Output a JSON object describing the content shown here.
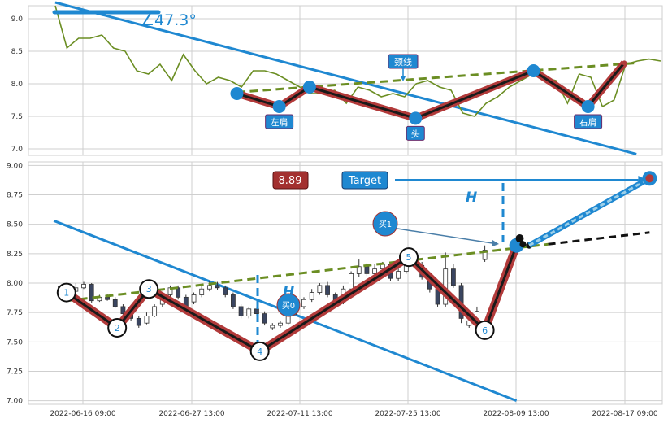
{
  "chart_data": [
    {
      "type": "line",
      "panel": "top",
      "ylim": [
        6.9,
        9.2
      ],
      "yticks": [
        "7.0",
        "7.5",
        "8.0",
        "8.5",
        "9.0"
      ],
      "angle_label": "∠47.3°",
      "price_line": [
        9.2,
        8.55,
        8.7,
        8.7,
        8.75,
        8.55,
        8.5,
        8.2,
        8.15,
        8.3,
        8.05,
        8.45,
        8.2,
        8.0,
        8.1,
        8.05,
        7.95,
        8.2,
        8.2,
        8.15,
        8.05,
        7.95,
        7.85,
        7.85,
        7.9,
        7.7,
        7.95,
        7.9,
        7.8,
        7.85,
        7.8,
        8.0,
        8.05,
        7.95,
        7.9,
        7.55,
        7.5,
        7.7,
        7.8,
        7.95,
        8.05,
        8.15,
        8.1,
        8.05,
        7.7,
        8.15,
        8.1,
        7.65,
        7.75,
        8.3,
        8.35,
        8.38,
        8.35
      ],
      "pattern_points": [
        {
          "x": 0.3,
          "y": 7.85,
          "label": ""
        },
        {
          "x": 0.37,
          "y": 7.65,
          "label": "左肩"
        },
        {
          "x": 0.42,
          "y": 7.95,
          "label": ""
        },
        {
          "x": 0.595,
          "y": 7.47,
          "label": "头"
        },
        {
          "x": 0.79,
          "y": 8.2,
          "label": ""
        },
        {
          "x": 0.88,
          "y": 7.65,
          "label": "右肩"
        },
        {
          "x": 0.94,
          "y": 8.32,
          "label": ""
        }
      ],
      "neckline": {
        "label": "颈线",
        "from": [
          0.3,
          7.87
        ],
        "to": [
          0.96,
          8.32
        ]
      },
      "trend_line": {
        "from": [
          0.0,
          9.25
        ],
        "to": [
          0.96,
          6.92
        ]
      }
    },
    {
      "type": "candlestick",
      "panel": "bottom",
      "ylim": [
        6.97,
        9.03
      ],
      "yticks": [
        "7.00",
        "7.25",
        "7.50",
        "7.75",
        "8.00",
        "8.25",
        "8.50",
        "8.75",
        "9.00"
      ],
      "xticks": [
        "2022-06-16 09:00",
        "2022-06-27 13:00",
        "2022-07-11 13:00",
        "2022-07-25 13:00",
        "2022-08-09 13:00",
        "2022-08-17 09:00"
      ],
      "annotations": {
        "price_box": "8.89",
        "target_label": "Target",
        "buy_label_1": "买1",
        "buy_label_0": "买0",
        "h_label": "H"
      },
      "pattern_points": [
        {
          "x": 0.06,
          "y": 7.92,
          "label": "1"
        },
        {
          "x": 0.14,
          "y": 7.62,
          "label": "2"
        },
        {
          "x": 0.19,
          "y": 7.95,
          "label": "3"
        },
        {
          "x": 0.365,
          "y": 7.42,
          "label": "4"
        },
        {
          "x": 0.6,
          "y": 8.22,
          "label": "5"
        },
        {
          "x": 0.72,
          "y": 7.6,
          "label": "6"
        },
        {
          "x": 0.77,
          "y": 8.32,
          "label": ""
        }
      ],
      "neckline": {
        "from": [
          0.06,
          7.85
        ],
        "to": [
          0.82,
          8.33
        ]
      },
      "trend_line": {
        "from": [
          0.04,
          8.53
        ],
        "to": [
          0.77,
          7.0
        ]
      },
      "target": {
        "x": 0.98,
        "y": 8.89
      },
      "projection": {
        "from": [
          0.82,
          8.33
        ],
        "to": [
          0.98,
          8.43
        ]
      },
      "candles": [
        [
          7.92,
          7.97,
          7.98,
          7.9
        ],
        [
          7.95,
          7.93,
          7.97,
          7.91
        ],
        [
          7.93,
          7.96,
          8.0,
          7.92
        ],
        [
          7.96,
          7.99,
          8.01,
          7.95
        ],
        [
          7.99,
          7.85,
          8.0,
          7.83
        ],
        [
          7.85,
          7.88,
          7.9,
          7.84
        ],
        [
          7.88,
          7.86,
          7.91,
          7.85
        ],
        [
          7.86,
          7.8,
          7.88,
          7.79
        ],
        [
          7.8,
          7.74,
          7.82,
          7.72
        ],
        [
          7.74,
          7.7,
          7.76,
          7.68
        ],
        [
          7.7,
          7.64,
          7.72,
          7.62
        ],
        [
          7.66,
          7.72,
          7.75,
          7.65
        ],
        [
          7.72,
          7.8,
          7.82,
          7.71
        ],
        [
          7.82,
          7.9,
          7.92,
          7.8
        ],
        [
          7.9,
          7.96,
          7.98,
          7.88
        ],
        [
          7.96,
          7.88,
          7.98,
          7.86
        ],
        [
          7.88,
          7.8,
          7.9,
          7.78
        ],
        [
          7.84,
          7.9,
          7.92,
          7.82
        ],
        [
          7.9,
          7.95,
          7.98,
          7.88
        ],
        [
          7.95,
          7.98,
          8.02,
          7.93
        ],
        [
          7.98,
          7.96,
          8.01,
          7.94
        ],
        [
          7.96,
          7.9,
          7.98,
          7.88
        ],
        [
          7.9,
          7.8,
          7.92,
          7.78
        ],
        [
          7.8,
          7.72,
          7.82,
          7.7
        ],
        [
          7.72,
          7.78,
          7.8,
          7.7
        ],
        [
          7.78,
          7.74,
          7.8,
          7.72
        ],
        [
          7.74,
          7.66,
          7.76,
          7.64
        ],
        [
          7.62,
          7.64,
          7.66,
          7.6
        ],
        [
          7.64,
          7.66,
          7.68,
          7.62
        ],
        [
          7.66,
          7.75,
          7.78,
          7.64
        ],
        [
          7.75,
          7.8,
          7.82,
          7.73
        ],
        [
          7.8,
          7.86,
          7.88,
          7.78
        ],
        [
          7.86,
          7.92,
          7.95,
          7.84
        ],
        [
          7.92,
          7.98,
          8.0,
          7.9
        ],
        [
          7.98,
          7.9,
          8.01,
          7.88
        ],
        [
          7.9,
          7.84,
          7.92,
          7.82
        ],
        [
          7.84,
          7.95,
          7.98,
          7.82
        ],
        [
          7.95,
          8.08,
          8.1,
          7.93
        ],
        [
          8.08,
          8.14,
          8.2,
          8.05
        ],
        [
          8.14,
          8.08,
          8.17,
          8.06
        ],
        [
          8.08,
          8.12,
          8.16,
          8.06
        ],
        [
          8.12,
          8.16,
          8.18,
          8.1
        ],
        [
          8.16,
          8.04,
          8.18,
          8.02
        ],
        [
          8.04,
          8.1,
          8.14,
          8.02
        ],
        [
          8.1,
          8.18,
          8.22,
          8.08
        ],
        [
          8.18,
          8.15,
          8.2,
          8.12
        ],
        [
          8.15,
          8.05,
          8.18,
          8.03
        ],
        [
          8.05,
          7.95,
          8.08,
          7.92
        ],
        [
          7.95,
          7.82,
          7.98,
          7.8
        ],
        [
          7.82,
          8.12,
          8.26,
          7.8
        ],
        [
          8.12,
          7.98,
          8.16,
          7.96
        ],
        [
          7.98,
          7.7,
          8.0,
          7.66
        ],
        [
          7.64,
          7.68,
          7.72,
          7.62
        ],
        [
          7.68,
          7.76,
          7.8,
          7.66
        ],
        [
          8.2,
          8.28,
          8.32,
          8.18
        ]
      ]
    }
  ]
}
